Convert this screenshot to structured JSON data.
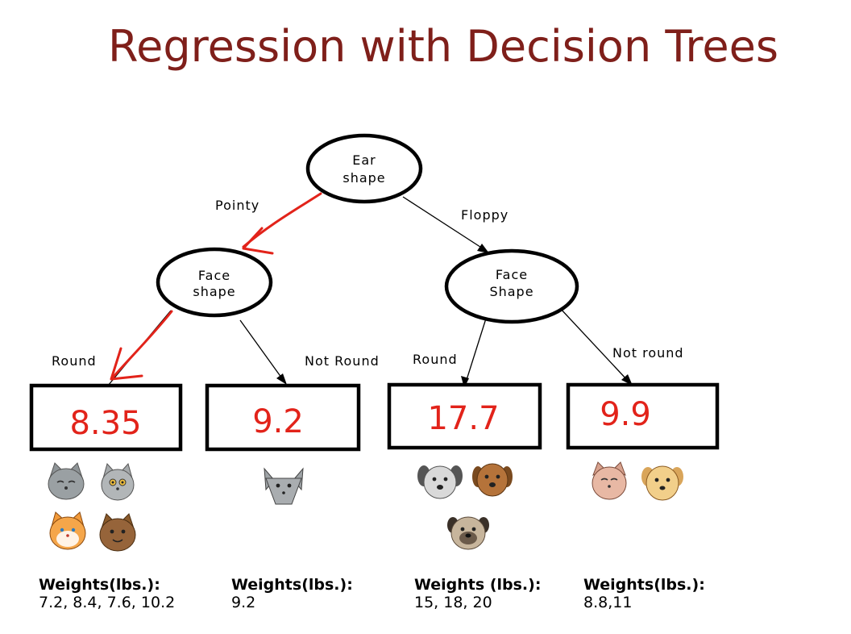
{
  "title": "Regression with Decision Trees",
  "nodes": {
    "root": [
      "Ear",
      "shape"
    ],
    "left": [
      "Face",
      "shape"
    ],
    "right": [
      "Face",
      "Shape"
    ]
  },
  "edges": {
    "pointy": "Pointy",
    "floppy": "Floppy",
    "left_round": "Round",
    "left_not_round": "Not Round",
    "right_round": "Round",
    "right_not_round": "Not round"
  },
  "leaves": [
    {
      "value": "8.35",
      "weights_label": "Weights(lbs.):",
      "weights": "7.2, 8.4, 7.6, 10.2"
    },
    {
      "value": "9.2",
      "weights_label": "Weights(lbs.):",
      "weights": "9.2"
    },
    {
      "value": "17.7",
      "weights_label": "Weights (lbs.):",
      "weights": "15,  18, 20"
    },
    {
      "value": "9.9",
      "weights_label": "Weights(lbs.):",
      "weights": "8.8,11"
    }
  ],
  "colors": {
    "title": "#7f1f1a",
    "handwriting": "#e2231a",
    "lines": "#000000"
  },
  "icons": [
    "cat-icon",
    "dog-icon"
  ]
}
